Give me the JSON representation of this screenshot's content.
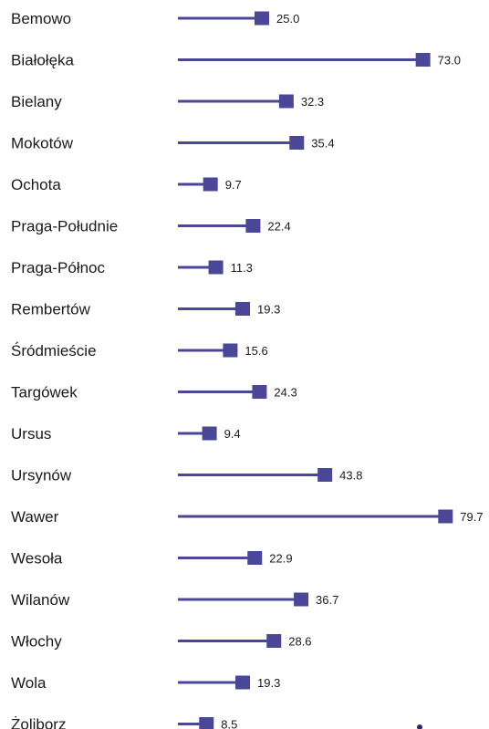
{
  "chart_data": {
    "type": "bar",
    "categories": [
      "Bemowo",
      "Białołęka",
      "Bielany",
      "Mokotów",
      "Ochota",
      "Praga-Południe",
      "Praga-Północ",
      "Rembertów",
      "Śródmieście",
      "Targówek",
      "Ursus",
      "Ursynów",
      "Wawer",
      "Wesoła",
      "Wilanów",
      "Włochy",
      "Wola",
      "Żoliborz"
    ],
    "values": [
      25.0,
      73.0,
      32.3,
      35.4,
      9.7,
      22.4,
      11.3,
      19.3,
      15.6,
      24.3,
      9.4,
      43.8,
      79.7,
      22.9,
      36.7,
      28.6,
      19.3,
      8.5
    ],
    "value_labels": [
      "25.0",
      "73.0",
      "32.3",
      "35.4",
      "9.7",
      "22.4",
      "11.3",
      "19.3",
      "15.6",
      "24.3",
      "9.4",
      "43.8",
      "79.7",
      "22.9",
      "36.7",
      "28.6",
      "19.3",
      "8.5"
    ],
    "title": "",
    "xlabel": "",
    "ylabel": "",
    "xlim": [
      0,
      80
    ],
    "grid": false,
    "orientation": "horizontal-lollipop",
    "colors": {
      "series": "#4a4798",
      "text": "#1a1a1a"
    }
  }
}
